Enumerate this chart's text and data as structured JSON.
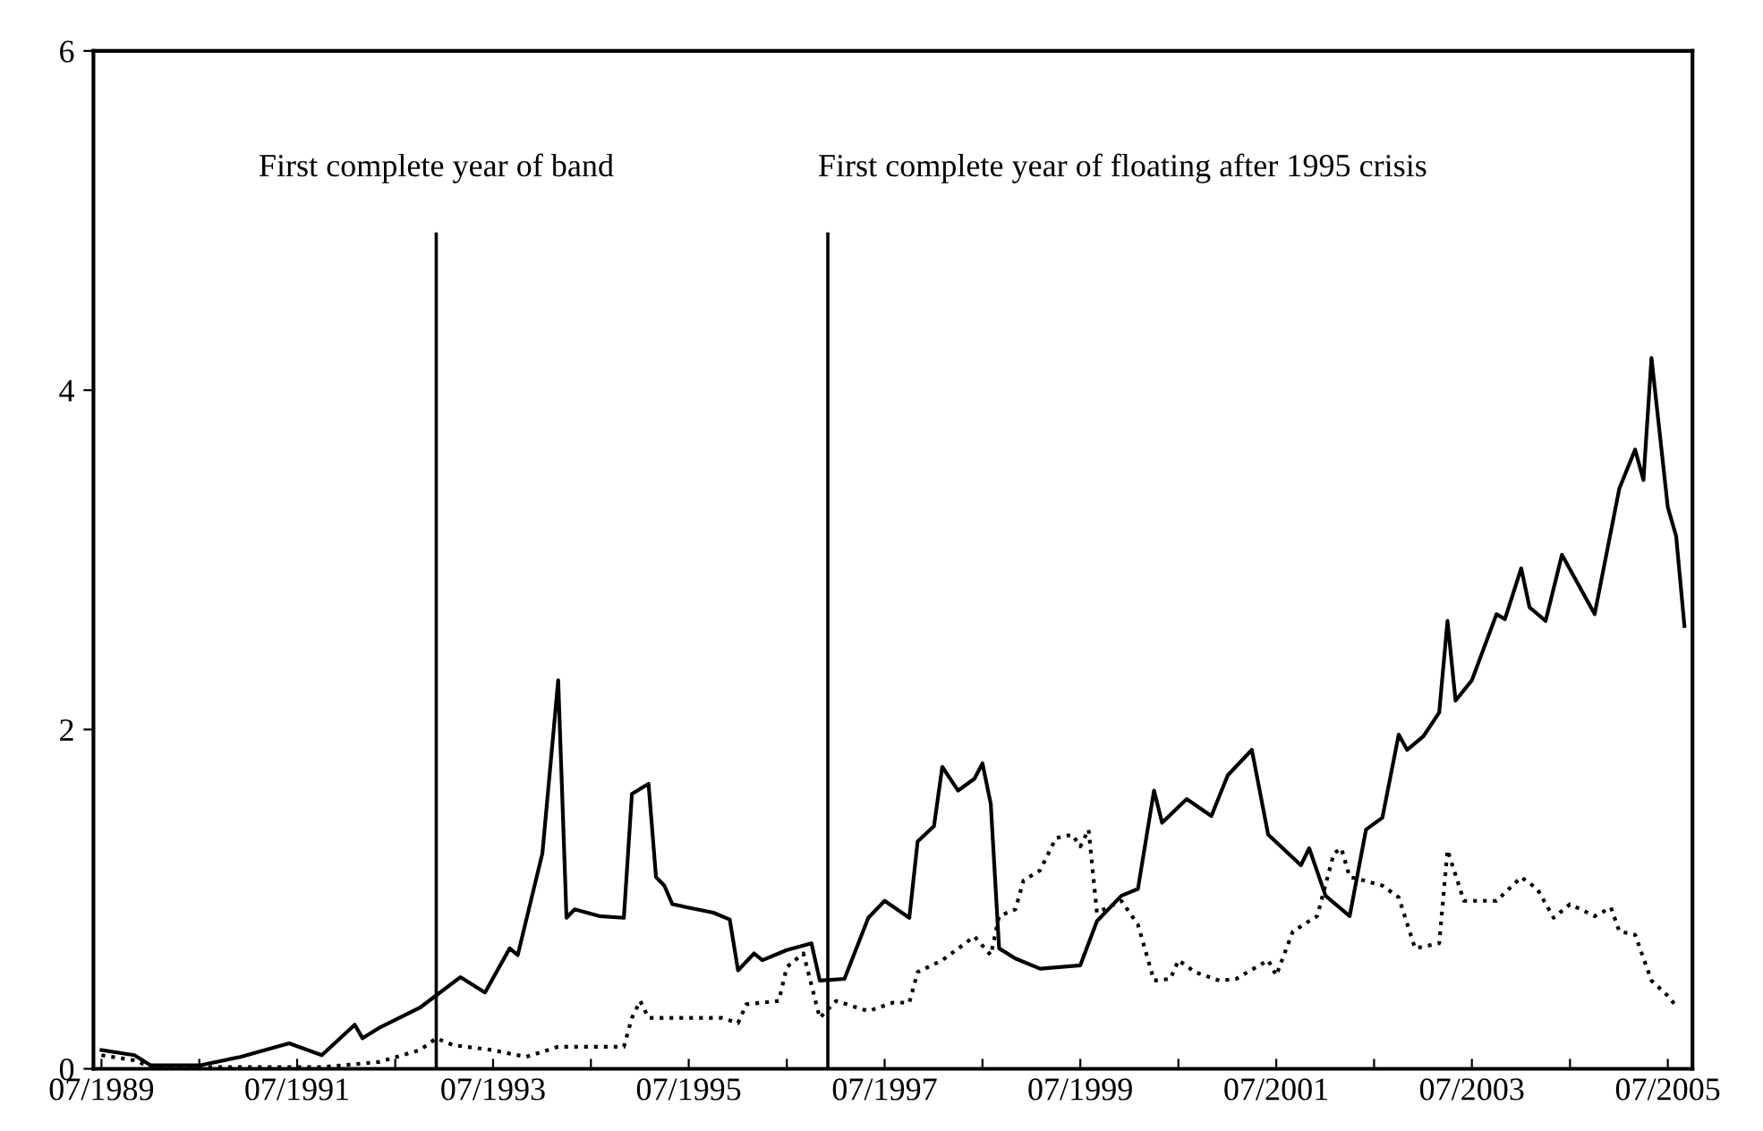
{
  "chart_data": {
    "type": "line",
    "xlim": [
      "1989-06",
      "2005-10"
    ],
    "ylim": [
      0,
      6
    ],
    "yticks": [
      0,
      2,
      4,
      6
    ],
    "xticks": [
      {
        "value": "1989-07",
        "label": "07/1989"
      },
      {
        "value": "1990-07",
        "label": null
      },
      {
        "value": "1991-07",
        "label": "07/1991"
      },
      {
        "value": "1992-07",
        "label": null
      },
      {
        "value": "1993-07",
        "label": "07/1993"
      },
      {
        "value": "1994-07",
        "label": null
      },
      {
        "value": "1995-07",
        "label": "07/1995"
      },
      {
        "value": "1996-07",
        "label": null
      },
      {
        "value": "1997-07",
        "label": "07/1997"
      },
      {
        "value": "1998-07",
        "label": null
      },
      {
        "value": "1999-07",
        "label": "07/1999"
      },
      {
        "value": "2000-07",
        "label": null
      },
      {
        "value": "2001-07",
        "label": "07/2001"
      },
      {
        "value": "2002-07",
        "label": null
      },
      {
        "value": "2003-07",
        "label": "07/2003"
      },
      {
        "value": "2004-07",
        "label": null
      },
      {
        "value": "2005-07",
        "label": "07/2005"
      }
    ],
    "grid": false,
    "legend": false,
    "ref_lines": [
      {
        "axis": "x",
        "value": "1992-12",
        "label": "First complete year of band",
        "color": "#000000"
      },
      {
        "axis": "x",
        "value": "1996-12",
        "label": "First complete year of floating after 1995 crisis",
        "color": "#000000"
      }
    ],
    "series": [
      {
        "color": "#000000",
        "line_style": "solid",
        "x": [
          "1989-07",
          "1989-11",
          "1990-01",
          "1990-07",
          "1990-12",
          "1991-06",
          "1991-10",
          "1992-02",
          "1992-03",
          "1992-05",
          "1992-10",
          "1993-03",
          "1993-06",
          "1993-09",
          "1993-10",
          "1994-01",
          "1994-03",
          "1994-04",
          "1994-05",
          "1994-08",
          "1994-11",
          "1994-12",
          "1995-02",
          "1995-03",
          "1995-04",
          "1995-05",
          "1995-10",
          "1995-12",
          "1996-01",
          "1996-03",
          "1996-04",
          "1996-07",
          "1996-10",
          "1996-11",
          "1997-02",
          "1997-05",
          "1997-07",
          "1997-10",
          "1997-11",
          "1998-01",
          "1998-02",
          "1998-04",
          "1998-06",
          "1998-07",
          "1998-08",
          "1998-09",
          "1998-11",
          "1999-02",
          "1999-07",
          "1999-09",
          "1999-12",
          "2000-02",
          "2000-04",
          "2000-05",
          "2000-08",
          "2000-11",
          "2001-01",
          "2001-04",
          "2001-06",
          "2001-10",
          "2001-11",
          "2002-01",
          "2002-04",
          "2002-06",
          "2002-08",
          "2002-10",
          "2002-11",
          "2003-01",
          "2003-03",
          "2003-04",
          "2003-05",
          "2003-07",
          "2003-10",
          "2003-11",
          "2004-01",
          "2004-02",
          "2004-04",
          "2004-06",
          "2004-10",
          "2005-01",
          "2005-03",
          "2005-04",
          "2005-05",
          "2005-07",
          "2005-08",
          "2005-09"
        ],
        "values": [
          0.11,
          0.08,
          0.02,
          0.02,
          0.07,
          0.15,
          0.08,
          0.26,
          0.18,
          0.24,
          0.36,
          0.54,
          0.45,
          0.71,
          0.67,
          1.27,
          2.29,
          0.89,
          0.94,
          0.9,
          0.89,
          1.62,
          1.68,
          1.13,
          1.08,
          0.97,
          0.92,
          0.88,
          0.58,
          0.68,
          0.64,
          0.7,
          0.74,
          0.52,
          0.53,
          0.89,
          0.99,
          0.89,
          1.34,
          1.43,
          1.78,
          1.64,
          1.71,
          1.8,
          1.56,
          0.71,
          0.65,
          0.59,
          0.61,
          0.87,
          1.02,
          1.06,
          1.64,
          1.45,
          1.59,
          1.49,
          1.73,
          1.88,
          1.38,
          1.2,
          1.3,
          1.02,
          0.9,
          1.41,
          1.48,
          1.97,
          1.88,
          1.96,
          2.1,
          2.64,
          2.17,
          2.29,
          2.68,
          2.65,
          2.95,
          2.72,
          2.64,
          3.03,
          2.68,
          3.42,
          3.65,
          3.47,
          4.19,
          3.31,
          3.14,
          2.61
        ]
      },
      {
        "color": "#000000",
        "line_style": "dotted",
        "x": [
          "1989-07",
          "1989-11",
          "1990-01",
          "1991-10",
          "1992-05",
          "1992-10",
          "1992-12",
          "1993-02",
          "1993-07",
          "1993-11",
          "1994-03",
          "1994-11",
          "1994-12",
          "1995-01",
          "1995-02",
          "1995-11",
          "1996-01",
          "1996-02",
          "1996-06",
          "1996-07",
          "1996-09",
          "1996-11",
          "1997-01",
          "1997-05",
          "1997-08",
          "1997-10",
          "1997-11",
          "1998-02",
          "1998-06",
          "1998-08",
          "1998-09",
          "1998-11",
          "1998-12",
          "1999-02",
          "1999-04",
          "1999-06",
          "1999-07",
          "1999-08",
          "1999-09",
          "1999-12",
          "2000-02",
          "2000-04",
          "2000-06",
          "2000-07",
          "2000-09",
          "2000-12",
          "2001-02",
          "2001-06",
          "2001-07",
          "2001-09",
          "2001-12",
          "2002-02",
          "2002-03",
          "2002-04",
          "2002-05",
          "2002-08",
          "2002-10",
          "2002-12",
          "2003-03",
          "2003-04",
          "2003-06",
          "2003-10",
          "2004-01",
          "2004-03",
          "2004-05",
          "2004-07",
          "2004-10",
          "2004-12",
          "2005-01",
          "2005-03",
          "2005-05",
          "2005-07",
          "2005-08"
        ],
        "values": [
          0.08,
          0.05,
          0.01,
          0.01,
          0.04,
          0.11,
          0.18,
          0.14,
          0.11,
          0.07,
          0.13,
          0.13,
          0.3,
          0.4,
          0.3,
          0.3,
          0.27,
          0.38,
          0.4,
          0.6,
          0.68,
          0.3,
          0.4,
          0.34,
          0.39,
          0.39,
          0.57,
          0.64,
          0.78,
          0.67,
          0.9,
          0.94,
          1.11,
          1.17,
          1.36,
          1.38,
          1.31,
          1.41,
          0.92,
          0.99,
          0.85,
          0.52,
          0.53,
          0.64,
          0.57,
          0.52,
          0.53,
          0.64,
          0.55,
          0.81,
          0.9,
          1.27,
          1.3,
          1.13,
          1.12,
          1.08,
          1.01,
          0.71,
          0.74,
          1.29,
          0.99,
          0.99,
          1.13,
          1.06,
          0.89,
          0.97,
          0.9,
          0.95,
          0.81,
          0.79,
          0.52,
          0.43,
          0.37
        ]
      }
    ]
  }
}
